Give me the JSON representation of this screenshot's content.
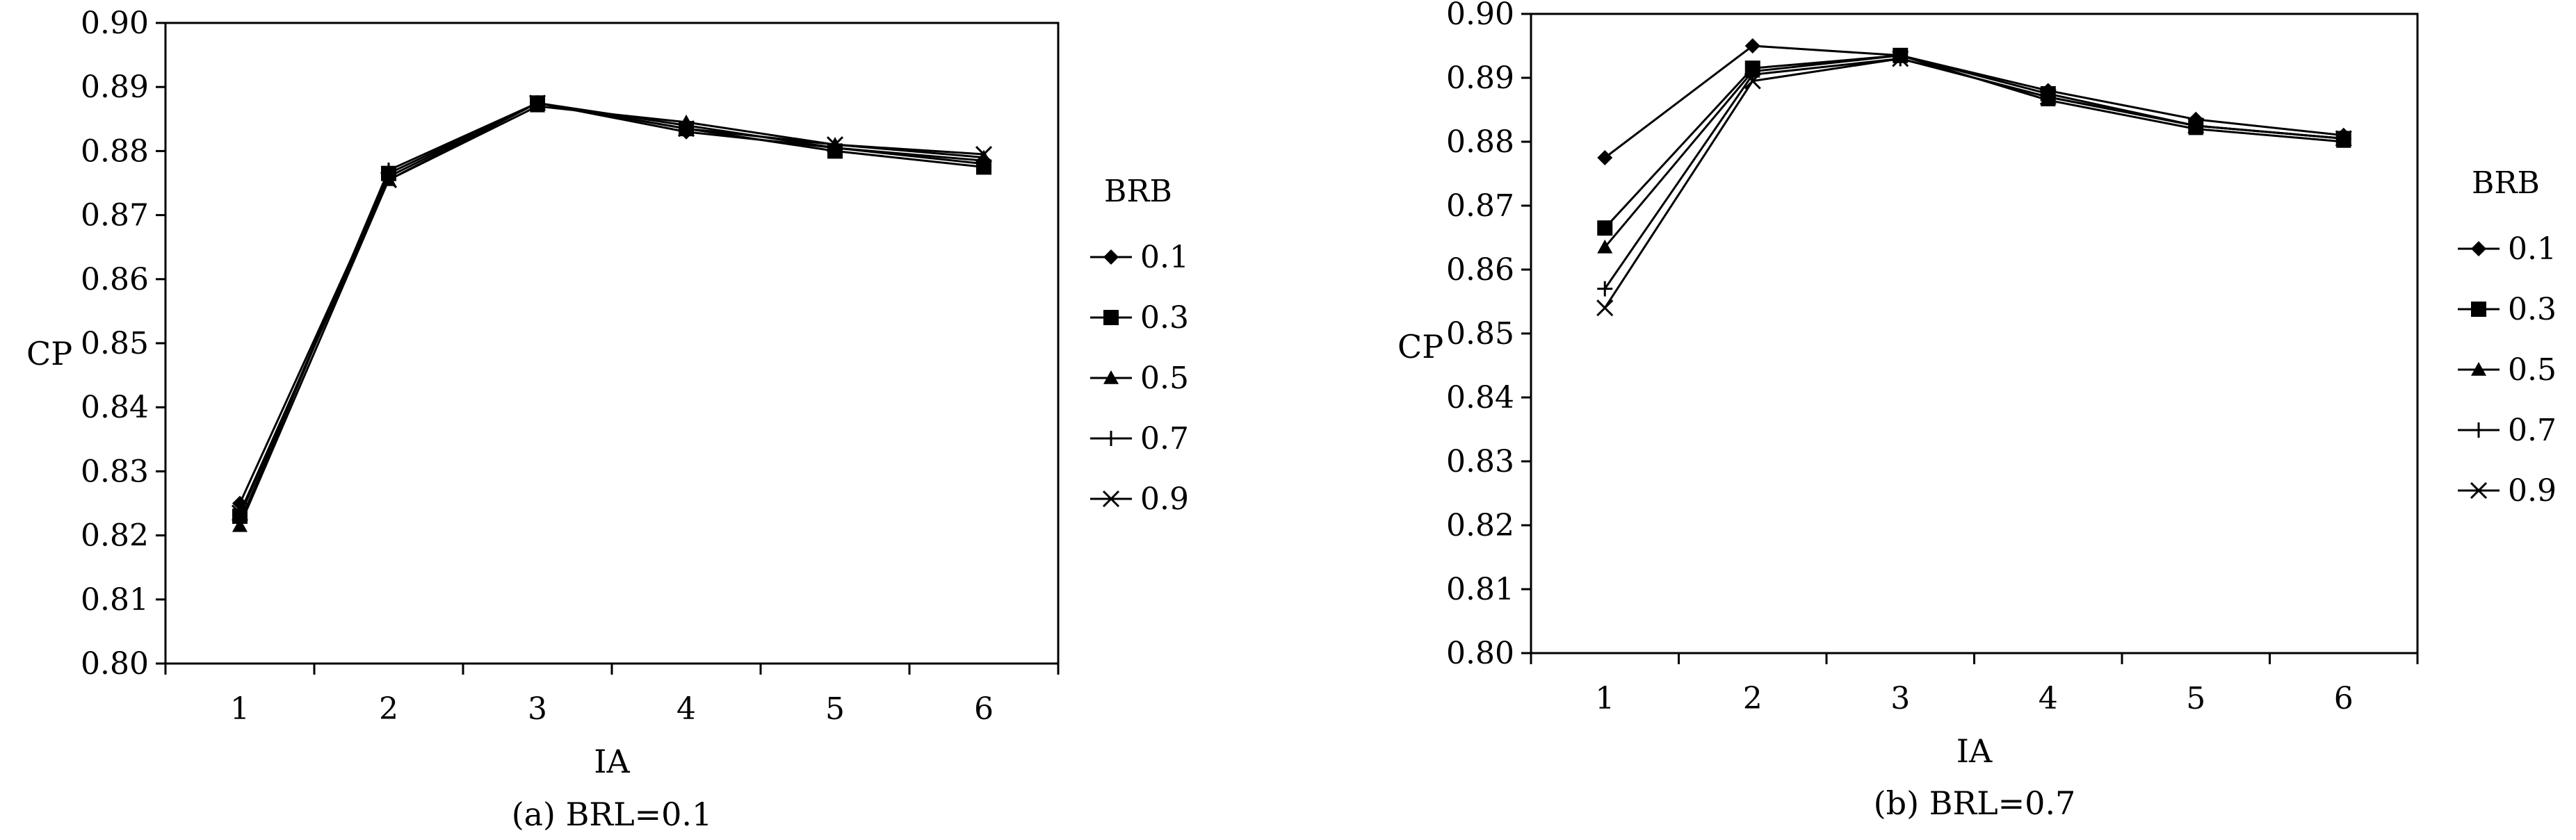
{
  "chart_data": [
    {
      "type": "line",
      "caption": "(a) BRL=0.1",
      "xlabel": "IA",
      "ylabel": "CP",
      "x": [
        1,
        2,
        3,
        4,
        5,
        6
      ],
      "xlim": [
        0.5,
        6.5
      ],
      "ylim": [
        0.8,
        0.9
      ],
      "yticks": [
        "0.80",
        "0.81",
        "0.82",
        "0.83",
        "0.84",
        "0.85",
        "0.86",
        "0.87",
        "0.88",
        "0.89",
        "0.90"
      ],
      "grid": false,
      "legend_title": "BRB",
      "legend_position": "right",
      "series": [
        {
          "name": "0.1",
          "marker": "diamond",
          "values": [
            0.825,
            0.876,
            0.8875,
            0.883,
            0.8805,
            0.878
          ]
        },
        {
          "name": "0.3",
          "marker": "square",
          "values": [
            0.823,
            0.8765,
            0.8875,
            0.8835,
            0.88,
            0.8775
          ]
        },
        {
          "name": "0.5",
          "marker": "triangle",
          "values": [
            0.8215,
            0.8755,
            0.887,
            0.8845,
            0.881,
            0.879
          ]
        },
        {
          "name": "0.7",
          "marker": "plus",
          "values": [
            0.822,
            0.877,
            0.8875,
            0.884,
            0.8805,
            0.8785
          ]
        },
        {
          "name": "0.9",
          "marker": "x",
          "values": [
            0.8235,
            0.8755,
            0.8875,
            0.8835,
            0.881,
            0.8795
          ]
        }
      ]
    },
    {
      "type": "line",
      "caption": "(b) BRL=0.7",
      "xlabel": "IA",
      "ylabel": "CP",
      "x": [
        1,
        2,
        3,
        4,
        5,
        6
      ],
      "xlim": [
        0.5,
        6.5
      ],
      "ylim": [
        0.8,
        0.9
      ],
      "yticks": [
        "0.80",
        "0.81",
        "0.82",
        "0.83",
        "0.84",
        "0.85",
        "0.86",
        "0.87",
        "0.88",
        "0.89",
        "0.90"
      ],
      "grid": false,
      "legend_title": "BRB",
      "legend_position": "right",
      "series": [
        {
          "name": "0.1",
          "marker": "diamond",
          "values": [
            0.8775,
            0.895,
            0.8935,
            0.888,
            0.8835,
            0.881
          ]
        },
        {
          "name": "0.3",
          "marker": "square",
          "values": [
            0.8665,
            0.8915,
            0.8935,
            0.8875,
            0.8825,
            0.8805
          ]
        },
        {
          "name": "0.5",
          "marker": "triangle",
          "values": [
            0.8635,
            0.891,
            0.8935,
            0.8865,
            0.882,
            0.88
          ]
        },
        {
          "name": "0.7",
          "marker": "plus",
          "values": [
            0.857,
            0.8905,
            0.893,
            0.887,
            0.8825,
            0.8805
          ]
        },
        {
          "name": "0.9",
          "marker": "x",
          "values": [
            0.854,
            0.8895,
            0.893,
            0.887,
            0.8825,
            0.8805
          ]
        }
      ]
    }
  ]
}
